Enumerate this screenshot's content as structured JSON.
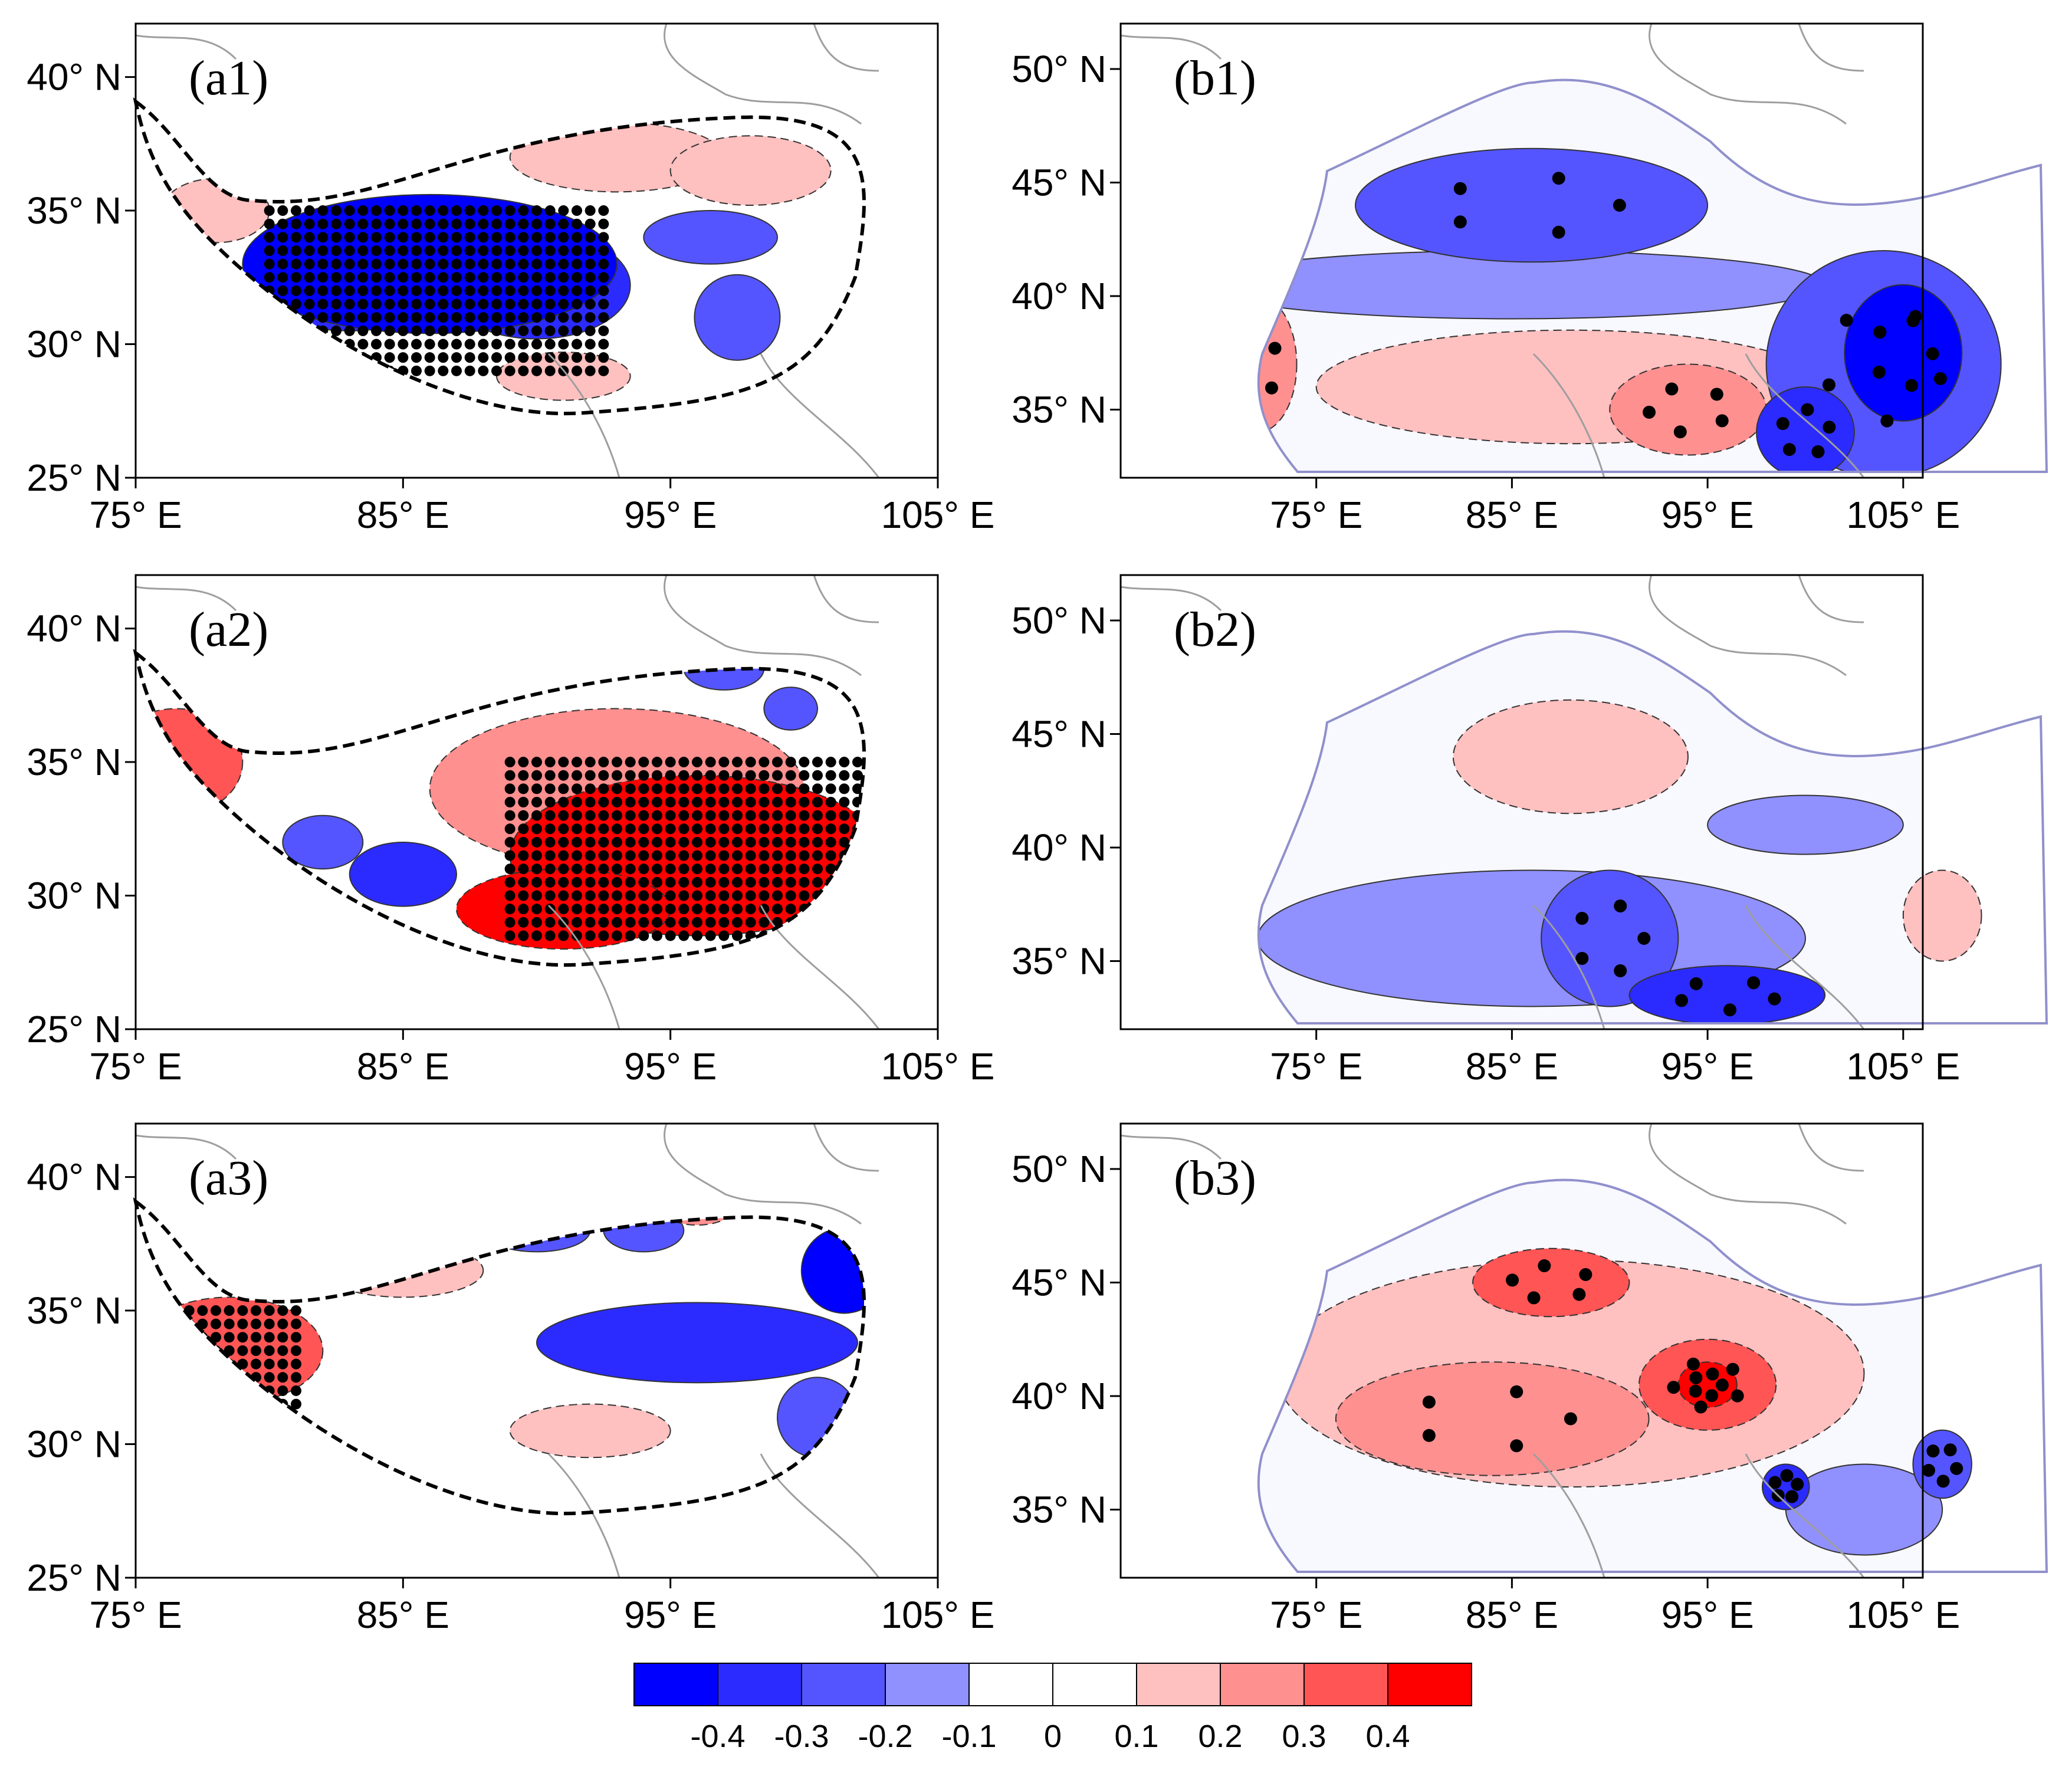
{
  "figure": {
    "colorbar": {
      "colors": [
        "#0000ff",
        "#2b2bff",
        "#5555ff",
        "#9090ff",
        "#ffffff",
        "#ffffff",
        "#ffc0c0",
        "#ff9090",
        "#ff5555",
        "#ff0000"
      ],
      "labels": [
        "-0.4",
        "-0.3",
        "-0.2",
        "-0.1",
        "0",
        "0.1",
        "0.2",
        "0.3",
        "0.4"
      ]
    },
    "stipple_color": "#000000",
    "outline_color": "#000000",
    "border_color": "#9e9e9e",
    "panels": [
      {
        "id": "a1",
        "label": "(a1)",
        "map": "tibet",
        "lon_range": [
          75,
          105
        ],
        "lat_range": [
          25,
          42
        ],
        "xticks": [
          "75° E",
          "85° E",
          "95° E",
          "105° E"
        ],
        "yticks": [
          "25° N",
          "30° N",
          "35° N",
          "40° N"
        ],
        "regions": [
          {
            "lon": 86,
            "lat": 33,
            "rx": 7,
            "ry": 2.6,
            "level": -0.4
          },
          {
            "lon": 83,
            "lat": 32.5,
            "rx": 4,
            "ry": 2,
            "level": -0.3
          },
          {
            "lon": 90,
            "lat": 32.2,
            "rx": 3.5,
            "ry": 2,
            "level": -0.3
          },
          {
            "lon": 96.5,
            "lat": 34,
            "rx": 2.5,
            "ry": 1,
            "level": -0.2
          },
          {
            "lon": 97.5,
            "lat": 31,
            "rx": 1.6,
            "ry": 1.6,
            "level": -0.2
          },
          {
            "lon": 93,
            "lat": 37,
            "rx": 4,
            "ry": 1.3,
            "level": 0.1
          },
          {
            "lon": 98,
            "lat": 36.5,
            "rx": 3,
            "ry": 1.3,
            "level": 0.1
          },
          {
            "lon": 91,
            "lat": 28.8,
            "rx": 2.5,
            "ry": 0.9,
            "level": 0.1
          },
          {
            "lon": 78,
            "lat": 35,
            "rx": 2,
            "ry": 1.2,
            "level": 0.1
          }
        ],
        "stipple": {
          "lon": [
            80,
            92.5
          ],
          "lat": [
            29,
            35.3
          ]
        }
      },
      {
        "id": "a2",
        "label": "(a2)",
        "map": "tibet",
        "lon_range": [
          75,
          105
        ],
        "lat_range": [
          25,
          42
        ],
        "xticks": [
          "75° E",
          "85° E",
          "95° E",
          "105° E"
        ],
        "yticks": [
          "25° N",
          "30° N",
          "35° N",
          "40° N"
        ],
        "regions": [
          {
            "lon": 96,
            "lat": 31.5,
            "rx": 7,
            "ry": 3,
            "level": 0.4
          },
          {
            "lon": 91,
            "lat": 29.5,
            "rx": 4,
            "ry": 1.5,
            "level": 0.4
          },
          {
            "lon": 93,
            "lat": 34,
            "rx": 7,
            "ry": 3,
            "level": 0.2
          },
          {
            "lon": 76.5,
            "lat": 35,
            "rx": 2.5,
            "ry": 2,
            "level": 0.3
          },
          {
            "lon": 85,
            "lat": 30.8,
            "rx": 2,
            "ry": 1.2,
            "level": -0.3
          },
          {
            "lon": 97,
            "lat": 38.5,
            "rx": 1.5,
            "ry": 0.8,
            "level": -0.2
          },
          {
            "lon": 99.5,
            "lat": 37,
            "rx": 1,
            "ry": 0.8,
            "level": -0.2
          },
          {
            "lon": 82,
            "lat": 32,
            "rx": 1.5,
            "ry": 1,
            "level": -0.2
          }
        ],
        "stipple": {
          "lon": [
            89,
            102.5
          ],
          "lat": [
            28.5,
            35
          ]
        }
      },
      {
        "id": "a3",
        "label": "(a3)",
        "map": "tibet",
        "lon_range": [
          75,
          105
        ],
        "lat_range": [
          25,
          42
        ],
        "xticks": [
          "75° E",
          "85° E",
          "95° E",
          "105° E"
        ],
        "yticks": [
          "25° N",
          "30° N",
          "35° N",
          "40° N"
        ],
        "regions": [
          {
            "lon": 96,
            "lat": 33.8,
            "rx": 6,
            "ry": 1.5,
            "level": -0.3
          },
          {
            "lon": 101.5,
            "lat": 36.5,
            "rx": 1.6,
            "ry": 1.6,
            "level": -0.4
          },
          {
            "lon": 90,
            "lat": 38,
            "rx": 2,
            "ry": 0.8,
            "level": -0.2
          },
          {
            "lon": 94,
            "lat": 38,
            "rx": 1.5,
            "ry": 0.8,
            "level": -0.2
          },
          {
            "lon": 100.5,
            "lat": 31,
            "rx": 1.5,
            "ry": 1.5,
            "level": -0.2
          },
          {
            "lon": 78.5,
            "lat": 33.5,
            "rx": 3.5,
            "ry": 2,
            "level": 0.3
          },
          {
            "lon": 96,
            "lat": 39,
            "rx": 1.5,
            "ry": 0.8,
            "level": 0.2
          },
          {
            "lon": 92,
            "lat": 30.5,
            "rx": 3,
            "ry": 1,
            "level": 0.1
          },
          {
            "lon": 85,
            "lat": 36.5,
            "rx": 3,
            "ry": 1,
            "level": 0.1
          }
        ],
        "stipple": {
          "lon": [
            76.5,
            81
          ],
          "lat": [
            31.5,
            35
          ]
        }
      },
      {
        "id": "b1",
        "label": "(b1)",
        "map": "china",
        "lon_range": [
          65,
          106
        ],
        "lat_range": [
          32,
          52
        ],
        "xticks": [
          "75° E",
          "85° E",
          "95° E",
          "105° E"
        ],
        "yticks": [
          "35° N",
          "40° N",
          "45° N",
          "50° N"
        ],
        "regions": [
          {
            "lon": 86,
            "lat": 44,
            "rx": 9,
            "ry": 2.5,
            "level": -0.2
          },
          {
            "lon": 104,
            "lat": 37,
            "rx": 6,
            "ry": 5,
            "level": -0.2
          },
          {
            "lon": 105,
            "lat": 37.5,
            "rx": 3,
            "ry": 3,
            "level": -0.4
          },
          {
            "lon": 100,
            "lat": 34,
            "rx": 2.5,
            "ry": 2,
            "level": -0.3
          },
          {
            "lon": 85,
            "lat": 40.5,
            "rx": 16,
            "ry": 1.5,
            "level": -0.1
          },
          {
            "lon": 88,
            "lat": 36,
            "rx": 13,
            "ry": 2.5,
            "level": 0.1
          },
          {
            "lon": 94,
            "lat": 35,
            "rx": 4,
            "ry": 2,
            "level": 0.2
          },
          {
            "lon": 72,
            "lat": 37,
            "rx": 2,
            "ry": 3,
            "level": 0.2
          }
        ],
        "stipple": null
      },
      {
        "id": "b2",
        "label": "(b2)",
        "map": "china",
        "lon_range": [
          65,
          106
        ],
        "lat_range": [
          32,
          52
        ],
        "xticks": [
          "75° E",
          "85° E",
          "95° E",
          "105° E"
        ],
        "yticks": [
          "35° N",
          "40° N",
          "45° N",
          "50° N"
        ],
        "regions": [
          {
            "lon": 86,
            "lat": 36,
            "rx": 14,
            "ry": 3,
            "level": -0.1
          },
          {
            "lon": 90,
            "lat": 36,
            "rx": 3.5,
            "ry": 3,
            "level": -0.2
          },
          {
            "lon": 96,
            "lat": 33.5,
            "rx": 5,
            "ry": 1.3,
            "level": -0.3
          },
          {
            "lon": 100,
            "lat": 41,
            "rx": 5,
            "ry": 1.3,
            "level": -0.1
          },
          {
            "lon": 88,
            "lat": 44,
            "rx": 6,
            "ry": 2.5,
            "level": 0.1
          },
          {
            "lon": 107,
            "lat": 37,
            "rx": 2,
            "ry": 2,
            "level": 0.1
          }
        ],
        "stipple": null
      },
      {
        "id": "b3",
        "label": "(b3)",
        "map": "china",
        "lon_range": [
          65,
          106
        ],
        "lat_range": [
          32,
          52
        ],
        "xticks": [
          "75° E",
          "85° E",
          "95° E",
          "105° E"
        ],
        "yticks": [
          "35° N",
          "40° N",
          "45° N",
          "50° N"
        ],
        "regions": [
          {
            "lon": 88,
            "lat": 41,
            "rx": 15,
            "ry": 5,
            "level": 0.1
          },
          {
            "lon": 84,
            "lat": 39,
            "rx": 8,
            "ry": 2.5,
            "level": 0.2
          },
          {
            "lon": 95,
            "lat": 40.5,
            "rx": 3.5,
            "ry": 2,
            "level": 0.3
          },
          {
            "lon": 95,
            "lat": 40.5,
            "rx": 1.5,
            "ry": 1,
            "level": 0.4
          },
          {
            "lon": 87,
            "lat": 45,
            "rx": 4,
            "ry": 1.5,
            "level": 0.3
          },
          {
            "lon": 103,
            "lat": 35,
            "rx": 4,
            "ry": 2,
            "level": -0.1
          },
          {
            "lon": 99,
            "lat": 36,
            "rx": 1.2,
            "ry": 1,
            "level": -0.3
          },
          {
            "lon": 107,
            "lat": 37,
            "rx": 1.5,
            "ry": 1.5,
            "level": -0.2
          }
        ],
        "stipple": null
      }
    ]
  }
}
